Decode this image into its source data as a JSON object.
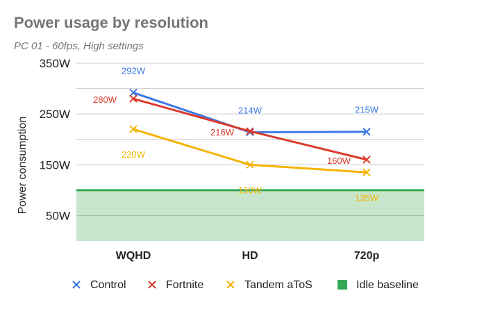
{
  "chart_data": {
    "type": "line",
    "title": "Power usage by resolution",
    "subtitle": "PC 01 - 60fps, High settings",
    "ylabel": "Power consumption",
    "xlabel": "",
    "ylim": [
      0,
      350
    ],
    "yticks": [
      50,
      150,
      250,
      350
    ],
    "ytick_labels": [
      "50W",
      "150W",
      "250W",
      "350W"
    ],
    "grid": true,
    "legend": "bottom",
    "categories": [
      "WQHD",
      "HD",
      "720p"
    ],
    "series": [
      {
        "name": "Control",
        "color": "#3b78e7",
        "values": [
          292,
          214,
          215
        ],
        "labels": [
          "292W",
          "214W",
          "215W"
        ]
      },
      {
        "name": "Fortnite",
        "color": "#db3a2b",
        "values": [
          280,
          216,
          160
        ],
        "labels": [
          "280W",
          "216W",
          "160W"
        ]
      },
      {
        "name": "Tandem aToS",
        "color": "#f4b400",
        "values": [
          220,
          150,
          135
        ],
        "labels": [
          "220W",
          "150W",
          "135W"
        ]
      }
    ],
    "baseline": {
      "name": "Idle baseline",
      "value": 100,
      "color": "#34a853",
      "fill": "#c7e6cc"
    }
  }
}
